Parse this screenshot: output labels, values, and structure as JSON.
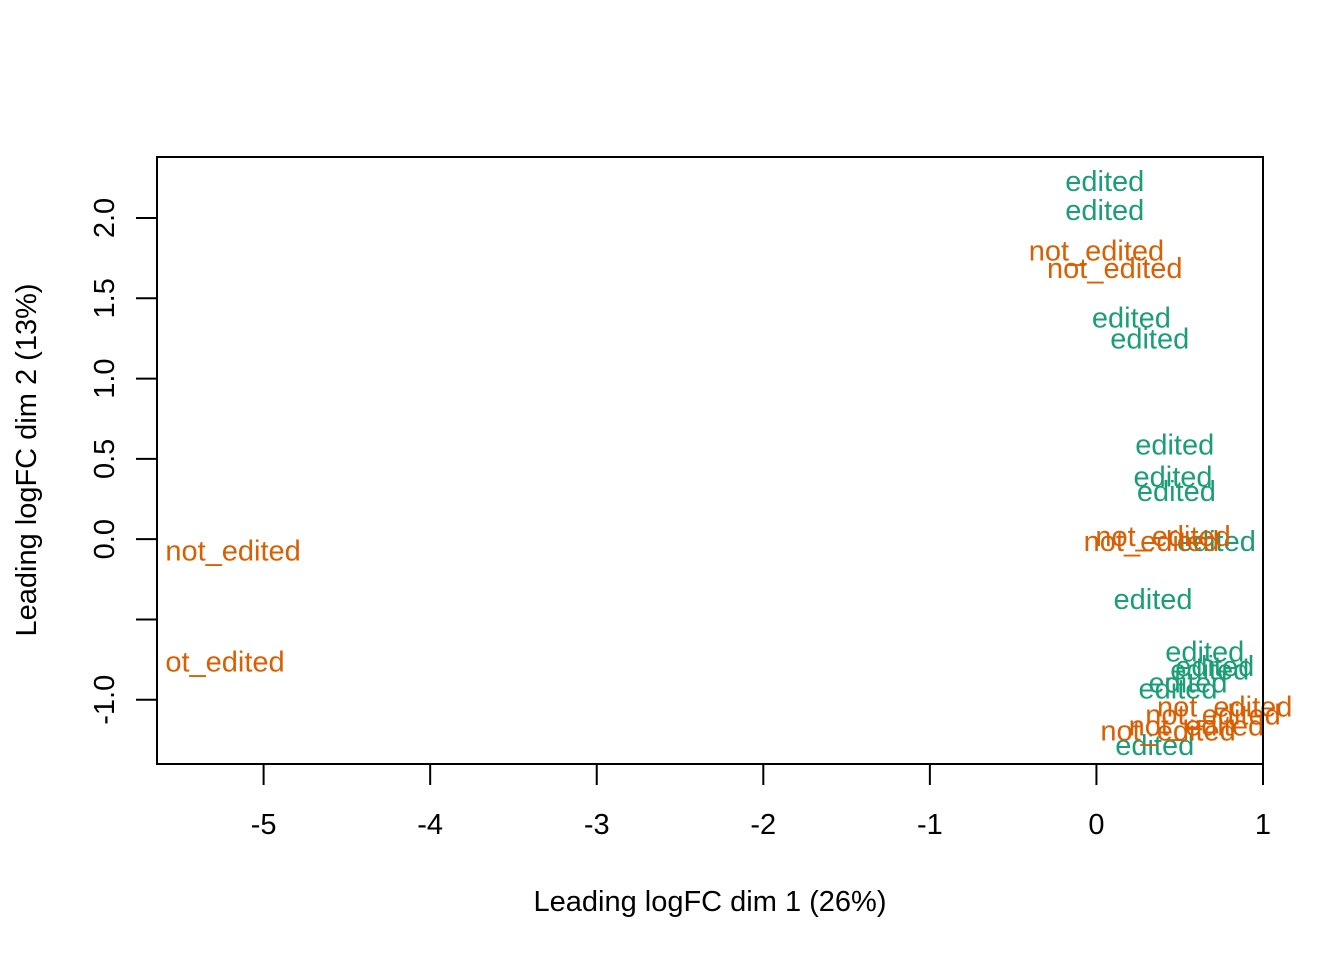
{
  "chart_data": {
    "type": "scatter",
    "title": "",
    "xlabel": "Leading logFC dim 1 (26%)",
    "ylabel": "Leading logFC dim 2 (13%)",
    "xlim": [
      -5.64,
      1.0
    ],
    "ylim": [
      -1.4,
      2.38
    ],
    "xticks": [
      {
        "value": -5,
        "label": "-5"
      },
      {
        "value": -4,
        "label": "-4"
      },
      {
        "value": -3,
        "label": "-3"
      },
      {
        "value": -2,
        "label": "-2"
      },
      {
        "value": -1,
        "label": "-1"
      },
      {
        "value": 0,
        "label": "0"
      },
      {
        "value": 1,
        "label": "1"
      }
    ],
    "yticks": [
      {
        "value": -1.0,
        "label": "-1.0"
      },
      {
        "value": -0.5,
        "label": ""
      },
      {
        "value": 0.0,
        "label": "0.0"
      },
      {
        "value": 0.5,
        "label": "0.5"
      },
      {
        "value": 1.0,
        "label": "1.0"
      },
      {
        "value": 1.5,
        "label": "1.5"
      },
      {
        "value": 2.0,
        "label": "2.0"
      }
    ],
    "grid": false,
    "legend": "none",
    "colors": {
      "edited": "#1b9e77",
      "not_edited": "#d95f02"
    },
    "series": [
      {
        "name": "edited",
        "points": [
          {
            "x": 0.05,
            "y": 2.23,
            "label": "edited"
          },
          {
            "x": 0.05,
            "y": 2.05,
            "label": "edited"
          },
          {
            "x": 0.21,
            "y": 1.38,
            "label": "edited"
          },
          {
            "x": 0.32,
            "y": 1.25,
            "label": "edited"
          },
          {
            "x": 0.47,
            "y": 0.59,
            "label": "edited"
          },
          {
            "x": 0.46,
            "y": 0.39,
            "label": "edited"
          },
          {
            "x": 0.48,
            "y": 0.3,
            "label": "edited"
          },
          {
            "x": 0.72,
            "y": -0.01,
            "label": "edited"
          },
          {
            "x": 0.34,
            "y": -0.37,
            "label": "edited"
          },
          {
            "x": 0.65,
            "y": -0.7,
            "label": "edited"
          },
          {
            "x": 0.68,
            "y": -0.81,
            "label": "edited"
          },
          {
            "x": 0.71,
            "y": -0.79,
            "label": "edited"
          },
          {
            "x": 0.55,
            "y": -0.89,
            "label": "edited"
          },
          {
            "x": 0.49,
            "y": -0.93,
            "label": "edited"
          },
          {
            "x": 0.35,
            "y": -1.28,
            "label": "edited"
          }
        ]
      },
      {
        "name": "not_edited",
        "points": [
          {
            "x": -5.59,
            "y": -0.07,
            "label": "not_edited",
            "anchor": "start"
          },
          {
            "x": -5.59,
            "y": -0.76,
            "label": "ot_edited",
            "anchor": "start"
          },
          {
            "x": 0.0,
            "y": 1.8,
            "label": "not_edited"
          },
          {
            "x": 0.11,
            "y": 1.69,
            "label": "not_edited"
          },
          {
            "x": 0.4,
            "y": 0.02,
            "label": "not_edited"
          },
          {
            "x": 0.33,
            "y": -0.01,
            "label": "not_edited"
          },
          {
            "x": 0.77,
            "y": -1.04,
            "label": "not_edited"
          },
          {
            "x": 0.7,
            "y": -1.09,
            "label": "not_edited"
          },
          {
            "x": 0.6,
            "y": -1.16,
            "label": "not_edited"
          },
          {
            "x": 0.43,
            "y": -1.19,
            "label": "not_edited"
          }
        ]
      }
    ]
  }
}
